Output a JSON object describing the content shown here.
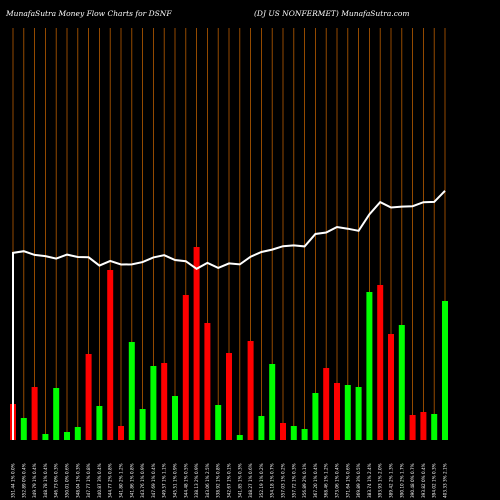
{
  "header": {
    "left_title": "MunafaSutra  Money Flow  Charts for DSNF",
    "right_title": "(DJ US NONFERMET) MunafaSutra.com"
  },
  "colors": {
    "background": "#000000",
    "grid": "#b85c00",
    "up": "#00ff00",
    "down": "#ff0000",
    "line": "#ffffff",
    "text": "#ffffff"
  },
  "chart_data": {
    "type": "bar",
    "title": "MunafaSutra  Money Flow  Charts for DSNF",
    "subtitle": "(DJ US NONFERMET) MunafaSutra.com",
    "grid": true,
    "y_axis_ticks": false,
    "categories": [
      "351.44 1% 0.0%",
      "352.89 0% 0.4%",
      "349.79 1% 0.4%",
      "348.78 1% 0.4%",
      "346.73 0% 0.3%",
      "350.01 0% 0.6%",
      "348.04 1% 0.3%",
      "347.77 1% 0.8%",
      "340.87 3% 0.4%",
      "344.77 2% 0.8%",
      "341.80 2% 1.2%",
      "341.86 1% 0.8%",
      "343.76 1% 0.9%",
      "347.69 1% 0.4%",
      "349.57 1% 1.1%",
      "345.51 1% 0.9%",
      "344.48 1% 0.5%",
      "338.13 2% 0.9%",
      "343.06 1% 2.5%",
      "338.92 1% 0.8%",
      "342.67 1% 0.1%",
      "341.85 1% 0.3%",
      "348.27 1% 0.6%",
      "352.19 1% 0.2%",
      "354.18 1% 0.7%",
      "357.03 1% 0.2%",
      "357.72 1% 0.3%",
      "356.89 2% 0.1%",
      "367.20 1% 0.4%",
      "368.46 1% 1.2%",
      "373.06 1% 0.4%",
      "371.64 1% 0.6%",
      "369.89 3% 0.5%",
      "383.74 1% 2.4%",
      "393.93 1% 2.0%",
      "389.42 2% 1.3%",
      "390.10 2% 1.7%",
      "390.48 0% 0.7%",
      "393.82 0% 0.4%",
      "394.02 1% 0.3%",
      "403.33 3% 2.1%"
    ],
    "directions": [
      "down",
      "up",
      "down",
      "up",
      "up",
      "up",
      "up",
      "down",
      "up",
      "down",
      "down",
      "up",
      "up",
      "up",
      "down",
      "up",
      "down",
      "down",
      "down",
      "up",
      "down",
      "up",
      "down",
      "up",
      "up",
      "down",
      "up",
      "up",
      "up",
      "down",
      "down",
      "up",
      "up",
      "up",
      "down",
      "down",
      "up",
      "down",
      "down",
      "up"
    ],
    "money_flow_values": [
      36,
      22,
      53,
      6,
      52,
      8,
      13,
      86,
      34,
      170,
      14,
      98,
      31,
      74,
      77,
      44,
      145,
      193,
      117,
      35,
      87,
      5,
      99,
      24,
      76,
      17,
      14,
      11,
      47,
      72,
      57,
      55,
      53,
      148,
      155,
      106,
      115,
      25,
      28,
      26
    ],
    "last_bar_value": 139,
    "price_line_values": [
      351.44,
      352.89,
      349.79,
      348.78,
      346.73,
      350.01,
      348.04,
      347.77,
      340.87,
      344.77,
      341.8,
      341.86,
      343.76,
      347.69,
      349.57,
      345.51,
      344.48,
      338.13,
      343.06,
      338.92,
      342.67,
      341.85,
      348.27,
      352.19,
      354.18,
      357.03,
      357.72,
      356.89,
      367.2,
      368.46,
      373.06,
      371.64,
      369.89,
      383.74,
      393.93,
      389.42,
      390.1,
      390.48,
      393.82,
      394.02,
      403.33
    ]
  }
}
